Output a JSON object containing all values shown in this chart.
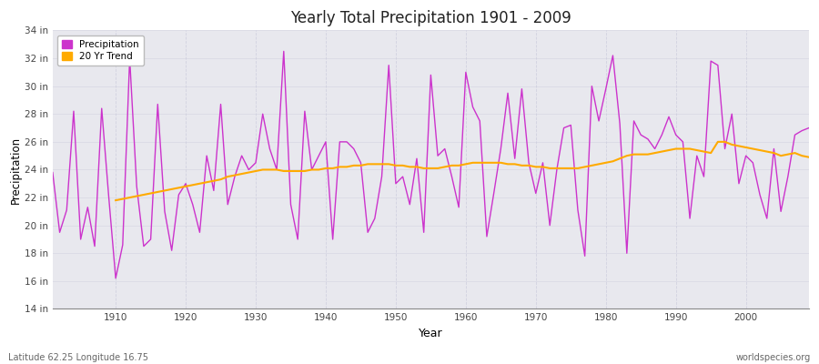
{
  "title": "Yearly Total Precipitation 1901 - 2009",
  "xlabel": "Year",
  "ylabel": "Precipitation",
  "bottom_left_label": "Latitude 62.25 Longitude 16.75",
  "bottom_right_label": "worldspecies.org",
  "ylim": [
    14,
    34
  ],
  "yticks": [
    14,
    16,
    18,
    20,
    22,
    24,
    26,
    28,
    30,
    32,
    34
  ],
  "ytick_labels": [
    "14 in",
    "16 in",
    "18 in",
    "20 in",
    "22 in",
    "24 in",
    "26 in",
    "28 in",
    "30 in",
    "32 in",
    "34 in"
  ],
  "xlim": [
    1901,
    2009
  ],
  "xticks": [
    1910,
    1920,
    1930,
    1940,
    1950,
    1960,
    1970,
    1980,
    1990,
    2000
  ],
  "bg_color": "#ffffff",
  "plot_bg_color": "#e8e8ee",
  "precip_color": "#cc33cc",
  "trend_color": "#ffaa00",
  "legend_precip": "Precipitation",
  "legend_trend": "20 Yr Trend",
  "years": [
    1901,
    1902,
    1903,
    1904,
    1905,
    1906,
    1907,
    1908,
    1909,
    1910,
    1911,
    1912,
    1913,
    1914,
    1915,
    1916,
    1917,
    1918,
    1919,
    1920,
    1921,
    1922,
    1923,
    1924,
    1925,
    1926,
    1927,
    1928,
    1929,
    1930,
    1931,
    1932,
    1933,
    1934,
    1935,
    1936,
    1937,
    1938,
    1939,
    1940,
    1941,
    1942,
    1943,
    1944,
    1945,
    1946,
    1947,
    1948,
    1949,
    1950,
    1951,
    1952,
    1953,
    1954,
    1955,
    1956,
    1957,
    1958,
    1959,
    1960,
    1961,
    1962,
    1963,
    1964,
    1965,
    1966,
    1967,
    1968,
    1969,
    1970,
    1971,
    1972,
    1973,
    1974,
    1975,
    1976,
    1977,
    1978,
    1979,
    1980,
    1981,
    1982,
    1983,
    1984,
    1985,
    1986,
    1987,
    1988,
    1989,
    1990,
    1991,
    1992,
    1993,
    1994,
    1995,
    1996,
    1997,
    1998,
    1999,
    2000,
    2001,
    2002,
    2003,
    2004,
    2005,
    2006,
    2007,
    2008,
    2009
  ],
  "precip": [
    23.8,
    19.5,
    21.1,
    28.2,
    19.0,
    21.3,
    18.5,
    28.4,
    22.1,
    16.2,
    18.6,
    32.0,
    22.8,
    18.5,
    19.0,
    28.7,
    21.0,
    18.2,
    22.2,
    23.0,
    21.5,
    19.5,
    25.0,
    22.5,
    28.7,
    21.5,
    23.5,
    25.0,
    24.0,
    24.5,
    28.0,
    25.5,
    24.0,
    32.5,
    21.5,
    19.0,
    28.2,
    24.0,
    25.0,
    26.0,
    19.0,
    26.0,
    26.0,
    25.5,
    24.5,
    19.5,
    20.5,
    23.5,
    31.5,
    23.0,
    23.5,
    21.5,
    24.8,
    19.5,
    30.8,
    25.0,
    25.5,
    23.5,
    21.3,
    31.0,
    28.5,
    27.5,
    19.2,
    22.3,
    25.5,
    29.5,
    24.8,
    29.8,
    24.5,
    22.3,
    24.5,
    20.0,
    24.0,
    27.0,
    27.2,
    21.1,
    17.8,
    30.0,
    27.5,
    29.8,
    32.2,
    27.3,
    18.0,
    27.5,
    26.5,
    26.2,
    25.5,
    26.5,
    27.8,
    26.5,
    26.0,
    20.5,
    25.0,
    23.5,
    31.8,
    31.5,
    25.5,
    28.0,
    23.0,
    25.0,
    24.5,
    22.2,
    20.5,
    25.5,
    21.0,
    23.5,
    26.5,
    26.8,
    27.0
  ],
  "trend_years": [
    1910,
    1911,
    1912,
    1913,
    1914,
    1915,
    1916,
    1917,
    1918,
    1919,
    1920,
    1921,
    1922,
    1923,
    1924,
    1925,
    1926,
    1927,
    1928,
    1929,
    1930,
    1931,
    1932,
    1933,
    1934,
    1935,
    1936,
    1937,
    1938,
    1939,
    1940,
    1941,
    1942,
    1943,
    1944,
    1945,
    1946,
    1947,
    1948,
    1949,
    1950,
    1951,
    1952,
    1953,
    1954,
    1955,
    1956,
    1957,
    1958,
    1959,
    1960,
    1961,
    1962,
    1963,
    1964,
    1965,
    1966,
    1967,
    1968,
    1969,
    1970,
    1971,
    1972,
    1973,
    1974,
    1975,
    1976,
    1977,
    1978,
    1979,
    1980,
    1981,
    1982,
    1983,
    1984,
    1985,
    1986,
    1987,
    1988,
    1989,
    1990,
    1991,
    1992,
    1993,
    1994,
    1995,
    1996,
    1997,
    1998,
    1999,
    2000,
    2001,
    2002,
    2003,
    2004,
    2005,
    2006,
    2007,
    2008,
    2009
  ],
  "trend": [
    21.8,
    21.9,
    22.0,
    22.1,
    22.2,
    22.3,
    22.4,
    22.5,
    22.6,
    22.7,
    22.8,
    22.9,
    23.0,
    23.1,
    23.2,
    23.3,
    23.5,
    23.6,
    23.7,
    23.8,
    23.9,
    24.0,
    24.0,
    24.0,
    23.9,
    23.9,
    23.9,
    23.9,
    24.0,
    24.0,
    24.1,
    24.1,
    24.2,
    24.2,
    24.3,
    24.3,
    24.4,
    24.4,
    24.4,
    24.4,
    24.3,
    24.3,
    24.2,
    24.2,
    24.1,
    24.1,
    24.1,
    24.2,
    24.3,
    24.3,
    24.4,
    24.5,
    24.5,
    24.5,
    24.5,
    24.5,
    24.4,
    24.4,
    24.3,
    24.3,
    24.2,
    24.2,
    24.1,
    24.1,
    24.1,
    24.1,
    24.1,
    24.2,
    24.3,
    24.4,
    24.5,
    24.6,
    24.8,
    25.0,
    25.1,
    25.1,
    25.1,
    25.2,
    25.3,
    25.4,
    25.5,
    25.5,
    25.5,
    25.4,
    25.3,
    25.2,
    26.0,
    26.0,
    25.8,
    25.7,
    25.6,
    25.5,
    25.4,
    25.3,
    25.2,
    25.0,
    25.1,
    25.2,
    25.0,
    24.9
  ]
}
